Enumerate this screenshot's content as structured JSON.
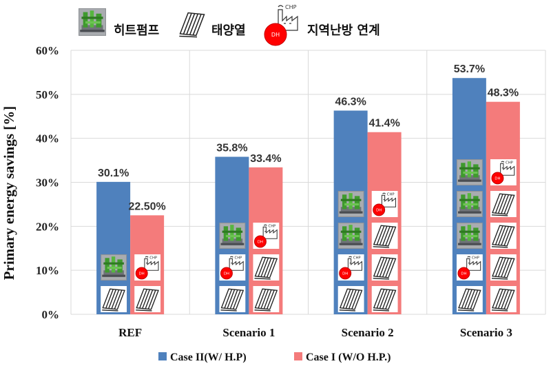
{
  "top_legend": {
    "heat_pump_label": "히트펌프",
    "solar_thermal_label": "태양열",
    "district_heating_label": "지역난방 연계",
    "dh_badge": "DH",
    "chp_badge": "CHP"
  },
  "chart_data": {
    "type": "bar",
    "ylabel": "Primary energy savings [%]",
    "ylim": [
      0,
      60
    ],
    "yticks": [
      0,
      10,
      20,
      30,
      40,
      50,
      60
    ],
    "ytick_labels": [
      "0%",
      "10%",
      "20%",
      "30%",
      "40%",
      "50%",
      "60%"
    ],
    "categories": [
      "REF",
      "Scenario 1",
      "Scenario 2",
      "Scenario 3"
    ],
    "series": [
      {
        "name": "Case II(W/ H.P)",
        "color": "#4f81bd",
        "values": [
          30.1,
          35.8,
          46.3,
          53.7
        ],
        "labels": [
          "30.1%",
          "35.8%",
          "46.3%",
          "53.7%"
        ],
        "icons": [
          [
            "solar",
            "heatpump"
          ],
          [
            "solar",
            "dh",
            "heatpump"
          ],
          [
            "solar",
            "dh",
            "heatpump",
            "heatpump"
          ],
          [
            "solar",
            "dh",
            "heatpump",
            "heatpump",
            "heatpump"
          ]
        ]
      },
      {
        "name": "Case I (W/O H.P.)",
        "color": "#f47b7b",
        "values": [
          22.5,
          33.4,
          41.4,
          48.3
        ],
        "labels": [
          "22.50%",
          "33.4%",
          "41.4%",
          "48.3%"
        ],
        "icons": [
          [
            "solar",
            "dh"
          ],
          [
            "solar",
            "solar",
            "dh"
          ],
          [
            "solar",
            "solar",
            "solar",
            "dh"
          ],
          [
            "solar",
            "solar",
            "solar",
            "solar",
            "dh"
          ]
        ]
      }
    ],
    "grid": true,
    "legend_position": "bottom"
  }
}
